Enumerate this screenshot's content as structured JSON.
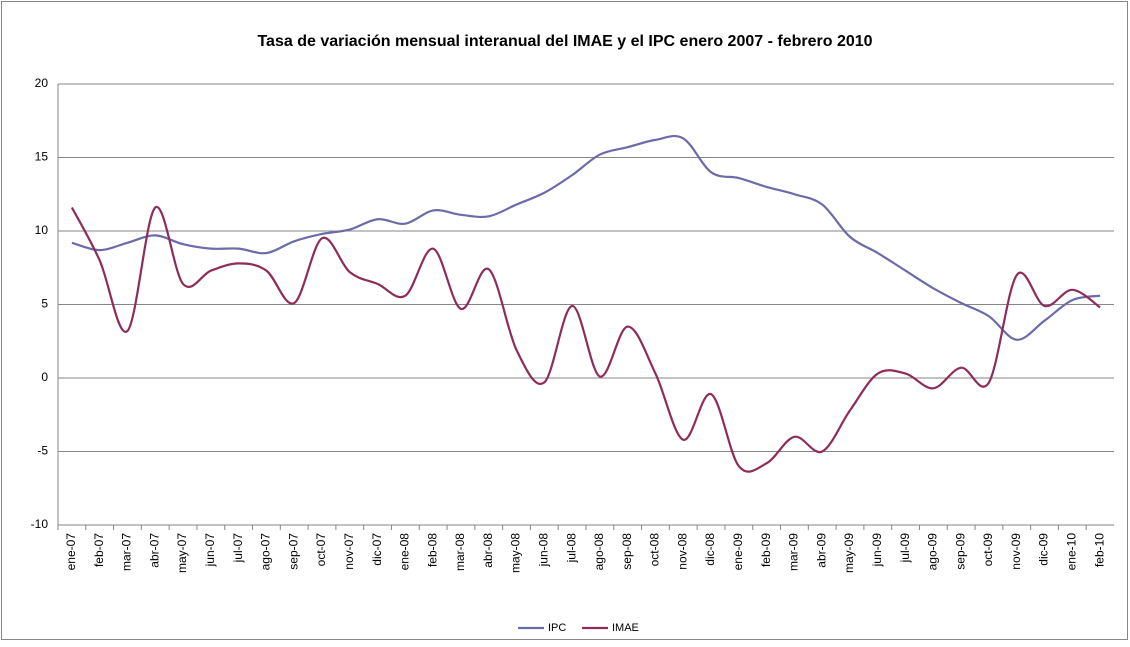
{
  "chart_data": {
    "type": "line",
    "title": "Tasa de variación mensual interanual del IMAE y el IPC enero 2007 - febrero 2010",
    "categories": [
      "ene-07",
      "feb-07",
      "mar-07",
      "abr-07",
      "may-07",
      "jun-07",
      "jul-07",
      "ago-07",
      "sep-07",
      "oct-07",
      "nov-07",
      "dic-07",
      "ene-08",
      "feb-08",
      "mar-08",
      "abr-08",
      "may-08",
      "jun-08",
      "jul-08",
      "ago-08",
      "sep-08",
      "oct-08",
      "nov-08",
      "dic-08",
      "ene-09",
      "feb-09",
      "mar-09",
      "abr-09",
      "may-09",
      "jun-09",
      "jul-09",
      "ago-09",
      "sep-09",
      "oct-09",
      "nov-09",
      "dic-09",
      "ene-10",
      "feb-10"
    ],
    "series": [
      {
        "name": "IPC",
        "color": "#6b6baa",
        "values": [
          9.2,
          8.7,
          9.2,
          9.7,
          9.1,
          8.8,
          8.8,
          8.5,
          9.3,
          9.8,
          10.1,
          10.8,
          10.5,
          11.4,
          11.1,
          11.0,
          11.8,
          12.6,
          13.8,
          15.2,
          15.7,
          16.2,
          16.3,
          14.0,
          13.6,
          13.0,
          12.5,
          11.8,
          9.6,
          8.5,
          7.3,
          6.1,
          5.1,
          4.2,
          2.6,
          3.9,
          5.3,
          5.6
        ]
      },
      {
        "name": "IMAE",
        "color": "#8e2c5a",
        "values": [
          11.6,
          8.0,
          3.2,
          11.6,
          6.4,
          7.3,
          7.8,
          7.3,
          5.1,
          9.5,
          7.2,
          6.4,
          5.6,
          8.8,
          4.7,
          7.4,
          1.9,
          -0.3,
          4.9,
          0.1,
          3.5,
          0.3,
          -4.2,
          -1.1,
          -6.0,
          -5.8,
          -4.0,
          -5.0,
          -2.2,
          0.3,
          0.3,
          -0.7,
          0.7,
          -0.3,
          7.0,
          4.9,
          6.0,
          4.8
        ]
      }
    ],
    "ylim": [
      -10,
      20
    ],
    "yticks": [
      -10,
      -5,
      0,
      5,
      10,
      15,
      20
    ],
    "grid": true,
    "legend": "bottom"
  }
}
